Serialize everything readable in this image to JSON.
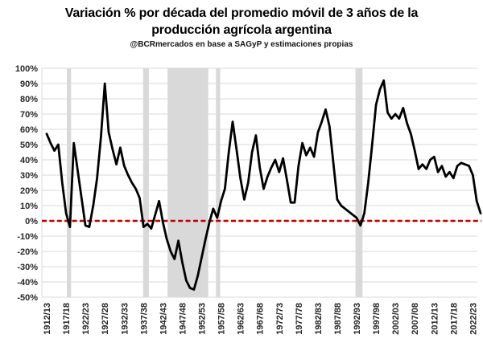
{
  "header": {
    "title_line1": "Variación % por década del promedio móvil de 3 años de la",
    "title_line2": "producción agrícola argentina",
    "subtitle": "@BCRmercados en base a SAGyP y estimaciones propias"
  },
  "chart_data": {
    "type": "line",
    "title": "Variación % por década del promedio móvil de 3 años de la producción agrícola argentina",
    "subtitle": "@BCRmercados en base a SAGyP y estimaciones propias",
    "background_color": "#FFFFFF",
    "grid": {
      "on": true,
      "color": "#D9D9D9"
    },
    "legend": false,
    "x_axis": {
      "tick_every": 5,
      "first_point": "1912/13",
      "last_point": "2024/25",
      "tick_labels": [
        "1912/13",
        "1917/18",
        "1922/23",
        "1927/28",
        "1932/33",
        "1937/38",
        "1942/43",
        "1947/48",
        "1952/53",
        "1957/58",
        "1962/63",
        "1967/68",
        "1972/73",
        "1977/78",
        "1982/83",
        "1987/88",
        "1992/93",
        "1997/98",
        "2002/03",
        "2007/08",
        "2012/13",
        "2017/18",
        "2022/23"
      ]
    },
    "y_axis": {
      "min": -50,
      "max": 100,
      "step": 10,
      "tick_labels": [
        "100%",
        "90%",
        "80%",
        "70%",
        "60%",
        "50%",
        "40%",
        "30%",
        "20%",
        "10%",
        "0%",
        "-10%",
        "-20%",
        "-30%",
        "-40%",
        "-50%"
      ]
    },
    "zero_line": {
      "value": 0,
      "style": "dashed",
      "color": "#C00000"
    },
    "shaded_periods": {
      "color": "#D9D9D9",
      "index_ranges": [
        [
          5.2,
          6.3
        ],
        [
          24.9,
          26.4
        ],
        [
          31.2,
          41.7
        ],
        [
          43.7,
          44.8
        ],
        [
          79.7,
          81.5
        ]
      ]
    },
    "series": [
      {
        "color": "#000000",
        "values": [
          57,
          51,
          46,
          50,
          25,
          5,
          -4,
          51,
          33,
          15,
          -3,
          -4,
          10,
          28,
          55,
          90,
          58,
          47,
          37,
          48,
          36,
          30,
          25,
          21,
          15,
          -4,
          -2,
          -5,
          4,
          13,
          -1,
          -12,
          -20,
          -25,
          -13,
          -27,
          -39,
          -44,
          -45,
          -36,
          -24,
          -12,
          -1,
          8,
          2,
          13,
          21,
          45,
          65,
          47,
          28,
          14,
          25,
          45,
          56,
          35,
          21,
          29,
          35,
          40,
          32,
          41,
          27,
          12,
          12,
          36,
          51,
          43,
          48,
          42,
          58,
          65,
          73,
          62,
          38,
          14,
          10,
          8,
          6,
          4,
          2,
          -3,
          5,
          25,
          50,
          76,
          86,
          92,
          71,
          67,
          70,
          67,
          74,
          64,
          57,
          46,
          34,
          37,
          34,
          40,
          42,
          32,
          36,
          29,
          32,
          28,
          36,
          38,
          37,
          36,
          30,
          13,
          5
        ]
      }
    ]
  }
}
